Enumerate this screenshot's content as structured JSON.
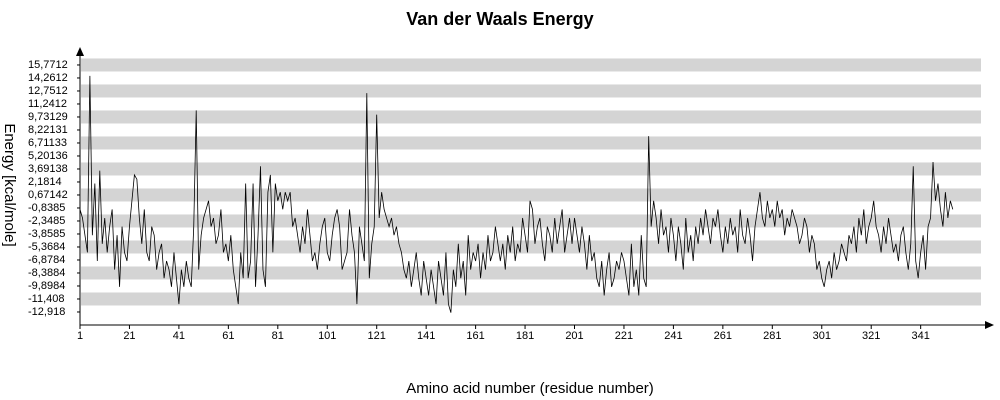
{
  "chart_data": {
    "type": "line",
    "title": "Van der Waals Energy",
    "xlabel": "Amino acid number (residue number)",
    "ylabel": "Energy [kcal/mole]",
    "x": [
      1,
      2,
      3,
      4,
      5,
      6,
      7,
      8,
      9,
      10,
      11,
      12,
      13,
      14,
      15,
      16,
      17,
      18,
      19,
      20,
      21,
      22,
      23,
      24,
      25,
      26,
      27,
      28,
      29,
      30,
      31,
      32,
      33,
      34,
      35,
      36,
      37,
      38,
      39,
      40,
      41,
      42,
      43,
      44,
      45,
      46,
      47,
      48,
      49,
      50,
      51,
      52,
      53,
      54,
      55,
      56,
      57,
      58,
      59,
      60,
      61,
      62,
      63,
      64,
      65,
      66,
      67,
      68,
      69,
      70,
      71,
      72,
      73,
      74,
      75,
      76,
      77,
      78,
      79,
      80,
      81,
      82,
      83,
      84,
      85,
      86,
      87,
      88,
      89,
      90,
      91,
      92,
      93,
      94,
      95,
      96,
      97,
      98,
      99,
      100,
      101,
      102,
      103,
      104,
      105,
      106,
      107,
      108,
      109,
      110,
      111,
      112,
      113,
      114,
      115,
      116,
      117,
      118,
      119,
      120,
      121,
      122,
      123,
      124,
      125,
      126,
      127,
      128,
      129,
      130,
      131,
      132,
      133,
      134,
      135,
      136,
      137,
      138,
      139,
      140,
      141,
      142,
      143,
      144,
      145,
      146,
      147,
      148,
      149,
      150,
      151,
      152,
      153,
      154,
      155,
      156,
      157,
      158,
      159,
      160,
      161,
      162,
      163,
      164,
      165,
      166,
      167,
      168,
      169,
      170,
      171,
      172,
      173,
      174,
      175,
      176,
      177,
      178,
      179,
      180,
      181,
      182,
      183,
      184,
      185,
      186,
      187,
      188,
      189,
      190,
      191,
      192,
      193,
      194,
      195,
      196,
      197,
      198,
      199,
      200,
      201,
      202,
      203,
      204,
      205,
      206,
      207,
      208,
      209,
      210,
      211,
      212,
      213,
      214,
      215,
      216,
      217,
      218,
      219,
      220,
      221,
      222,
      223,
      224,
      225,
      226,
      227,
      228,
      229,
      230,
      231,
      232,
      233,
      234,
      235,
      236,
      237,
      238,
      239,
      240,
      241,
      242,
      243,
      244,
      245,
      246,
      247,
      248,
      249,
      250,
      251,
      252,
      253,
      254,
      255,
      256,
      257,
      258,
      259,
      260,
      261,
      262,
      263,
      264,
      265,
      266,
      267,
      268,
      269,
      270,
      271,
      272,
      273,
      274,
      275,
      276,
      277,
      278,
      279,
      280,
      281,
      282,
      283,
      284,
      285,
      286,
      287,
      288,
      289,
      290,
      291,
      292,
      293,
      294,
      295,
      296,
      297,
      298,
      299,
      300,
      301,
      302,
      303,
      304,
      305,
      306,
      307,
      308,
      309,
      310,
      311,
      312,
      313,
      314,
      315,
      316,
      317,
      318,
      319,
      320,
      321,
      322,
      323,
      324,
      325,
      326,
      327,
      328,
      329,
      330,
      331,
      332,
      333,
      334,
      335,
      336,
      337,
      338,
      339,
      340,
      341,
      342,
      343,
      344,
      345,
      346,
      347,
      348,
      349,
      350,
      351,
      352,
      353,
      354
    ],
    "series": [
      {
        "name": "Van der Waals Energy",
        "color": "#000000",
        "values": [
          -1,
          -2,
          -4,
          -6,
          14.5,
          -4,
          2,
          -7,
          3.5,
          -5,
          -2,
          -6,
          -3,
          -1,
          -8,
          -4,
          -10,
          -3,
          -6,
          -7,
          -3,
          0,
          3,
          2.5,
          -2,
          -5,
          -1,
          -6,
          -7,
          -3,
          -4,
          -8,
          -6,
          -5,
          -9,
          -7,
          -8,
          -10,
          -6,
          -9,
          -12,
          -8,
          -10,
          -7,
          -9,
          -10,
          -3,
          10.5,
          -8,
          -4,
          -2,
          -1,
          0,
          -3,
          -2,
          -5,
          -4,
          -1,
          -6,
          -5,
          -7,
          -4,
          -8,
          -10,
          -12,
          -6,
          -9,
          2,
          -9,
          -7,
          2,
          -10,
          -4,
          4,
          -8,
          -10,
          1,
          3,
          -6,
          2,
          0,
          1,
          -1,
          1,
          0,
          1,
          -3,
          -2,
          -4,
          -6,
          -3,
          -5,
          -1,
          -4,
          -7,
          -6,
          -8,
          -5,
          -3,
          -2,
          -6,
          -7,
          -4,
          -2,
          -1,
          -3,
          -8,
          -7,
          -6,
          -1,
          -4,
          -6,
          -12,
          -3,
          -5,
          -7,
          12.5,
          -9,
          -5,
          -3,
          10,
          -2,
          1,
          -1,
          -2,
          -3,
          -2,
          -4,
          -3,
          -5,
          -6,
          -8,
          -9,
          -7,
          -10,
          -8,
          -6,
          -9,
          -11,
          -7,
          -9,
          -11,
          -8,
          -10,
          -12,
          -7,
          -9,
          -11,
          -6,
          -12,
          -13,
          -8,
          -10,
          -5,
          -9,
          -7,
          -11,
          -4,
          -8,
          -6,
          -7,
          -5,
          -9,
          -6,
          -8,
          -4,
          -7,
          -6,
          -3,
          -5,
          -7,
          -5,
          -8,
          -4,
          -6,
          -3,
          -7,
          -5,
          -6,
          -2,
          -4,
          -6,
          0,
          -1,
          -5,
          -3,
          -2,
          -5,
          -7,
          -3,
          -4,
          -6,
          -2,
          -5,
          -3,
          -1,
          -6,
          -4,
          -2,
          -5,
          -2,
          -4,
          -6,
          -3,
          -5,
          -8,
          -4,
          -7,
          -6,
          -9,
          -10,
          -7,
          -11,
          -8,
          -6,
          -10,
          -9,
          -7,
          -8,
          -6,
          -7,
          -9,
          -11,
          -5,
          -10,
          -8,
          -11,
          -4,
          -9,
          -10,
          7.5,
          -3,
          0,
          -2,
          -5,
          -1,
          -4,
          -3,
          -6,
          -2,
          -4,
          -7,
          -3,
          -5,
          -8,
          -2,
          -6,
          -4,
          -7,
          -3,
          -5,
          -2,
          -4,
          -1,
          -3,
          -5,
          -2,
          -3,
          -1,
          -4,
          -6,
          -3,
          -5,
          -2,
          -4,
          -3,
          -6,
          -1,
          -4,
          -5,
          -2,
          -4,
          -7,
          -3,
          -1,
          1,
          -2,
          -3,
          0,
          -2,
          -1,
          -3,
          0,
          -2,
          -1,
          -4,
          -2,
          -3,
          -1,
          -2,
          -3,
          -5,
          -4,
          -2,
          -3,
          -6,
          -4,
          -5,
          -8,
          -7,
          -9,
          -10,
          -8,
          -7,
          -9,
          -6,
          -8,
          -7,
          -5,
          -6,
          -7,
          -4,
          -5,
          -3,
          -6,
          -2,
          -4,
          -1,
          -5,
          -3,
          -2,
          0,
          -3,
          -4,
          -6,
          -3,
          -5,
          -2,
          -4,
          -6,
          -5,
          -7,
          -4,
          -3,
          -6,
          -8,
          -5,
          4,
          -7,
          -9,
          -6,
          -4,
          -8,
          -3,
          -2,
          4.5,
          0,
          2,
          -1,
          -3,
          1,
          -2,
          0,
          -1
        ]
      }
    ],
    "xlim": [
      1,
      365
    ],
    "xticks": [
      1,
      21,
      41,
      61,
      81,
      101,
      121,
      141,
      161,
      181,
      201,
      221,
      241,
      261,
      281,
      301,
      321,
      341
    ],
    "ylim": [
      -14.43,
      17.51
    ],
    "yticks": [
      {
        "value": 15.7712,
        "label": "15,7712"
      },
      {
        "value": 14.2612,
        "label": "14,2612"
      },
      {
        "value": 12.7512,
        "label": "12,7512"
      },
      {
        "value": 11.2412,
        "label": "11,2412"
      },
      {
        "value": 9.73129,
        "label": "9,73129"
      },
      {
        "value": 8.22131,
        "label": "8,22131"
      },
      {
        "value": 6.71133,
        "label": "6,71133"
      },
      {
        "value": 5.20136,
        "label": "5,20136"
      },
      {
        "value": 3.69138,
        "label": "3,69138"
      },
      {
        "value": 2.1814,
        "label": "2,1814"
      },
      {
        "value": 0.67142,
        "label": "0,67142"
      },
      {
        "value": -0.8385,
        "label": "-0,8385"
      },
      {
        "value": -2.3485,
        "label": "-2,3485"
      },
      {
        "value": -3.8585,
        "label": "-3,8585"
      },
      {
        "value": -5.3684,
        "label": "-5,3684"
      },
      {
        "value": -6.8784,
        "label": "-6,8784"
      },
      {
        "value": -8.3884,
        "label": "-8,3884"
      },
      {
        "value": -9.8984,
        "label": "-9,8984"
      },
      {
        "value": -11.408,
        "label": "-11,408"
      },
      {
        "value": -12.918,
        "label": "-12,918"
      }
    ],
    "grid": true,
    "grid_color": "#d4d4d4"
  }
}
